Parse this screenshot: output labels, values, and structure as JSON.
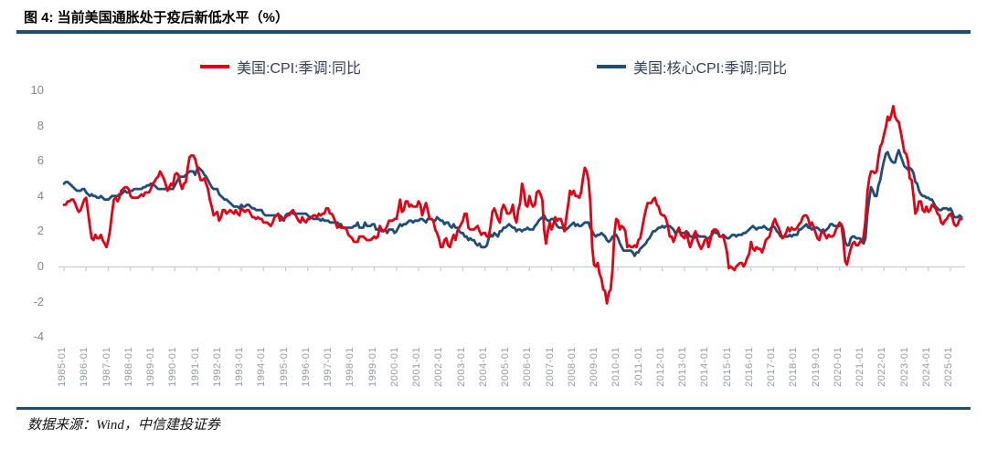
{
  "header": {
    "title": "图 4: 当前美国通胀处于疫后新低水平（%）"
  },
  "footer": {
    "source": "数据来源：Wind，中信建投证券"
  },
  "colors": {
    "divider_blue": "#1b4f78",
    "cpi_red": "#e60014",
    "core_cpi_blue": "#1f4e79",
    "axis_line_gray": "#c9cdd0",
    "y_tick_text": "#85898c",
    "x_tick_text": "#969ca1",
    "legend_text": "#33415c"
  },
  "chart_data": {
    "type": "line",
    "title": "当前美国通胀处于疫后新低水平（%）",
    "xlabel": "",
    "ylabel": "",
    "ylim": [
      -4,
      10
    ],
    "y_ticks": [
      10,
      8,
      6,
      4,
      2,
      0,
      -2,
      -4
    ],
    "grid": false,
    "legend_position": "top",
    "start": "1985-01",
    "end": "2025-07",
    "frequency": "monthly",
    "x_tick_labels": [
      "1985-01",
      "1986-01",
      "1987-01",
      "1988-01",
      "1989-01",
      "1990-01",
      "1991-01",
      "1992-01",
      "1993-01",
      "1994-01",
      "1995-01",
      "1996-01",
      "1997-01",
      "1998-01",
      "1999-01",
      "2000-01",
      "2001-01",
      "2002-01",
      "2003-01",
      "2004-01",
      "2005-01",
      "2006-01",
      "2007-01",
      "2008-01",
      "2009-01",
      "2010-01",
      "2011-01",
      "2012-01",
      "2013-01",
      "2014-01",
      "2015-01",
      "2016-01",
      "2017-01",
      "2018-01",
      "2019-01",
      "2020-01",
      "2021-01",
      "2022-01",
      "2023-01",
      "2024-01",
      "2025-01"
    ],
    "series": [
      {
        "name": "美国:CPI:季调:同比",
        "color": "#e60014",
        "values": [
          3.5,
          3.5,
          3.7,
          3.7,
          3.8,
          3.8,
          3.6,
          3.3,
          3.1,
          3.2,
          3.5,
          3.8,
          3.9,
          3.1,
          2.3,
          1.6,
          1.5,
          1.8,
          1.6,
          1.6,
          1.8,
          1.5,
          1.3,
          1.1,
          1.5,
          2.1,
          3.0,
          3.8,
          3.9,
          3.7,
          3.9,
          4.3,
          4.4,
          4.5,
          4.5,
          4.4,
          4.0,
          3.9,
          3.9,
          3.9,
          3.9,
          4.0,
          4.1,
          4.0,
          4.2,
          4.2,
          4.2,
          4.4,
          4.7,
          4.8,
          5.0,
          5.1,
          5.4,
          5.2,
          5.0,
          4.7,
          4.3,
          4.5,
          4.7,
          4.6,
          5.2,
          5.3,
          5.2,
          4.7,
          4.4,
          4.7,
          4.8,
          5.6,
          6.2,
          6.3,
          6.3,
          6.1,
          5.7,
          5.3,
          4.9,
          4.9,
          5.0,
          4.7,
          4.4,
          3.8,
          3.4,
          2.9,
          3.0,
          3.1,
          2.6,
          2.8,
          3.2,
          3.2,
          3.0,
          3.1,
          3.2,
          3.1,
          3.0,
          3.2,
          3.0,
          2.9,
          3.3,
          3.2,
          3.1,
          3.2,
          3.2,
          3.0,
          2.8,
          2.8,
          2.7,
          2.8,
          2.7,
          2.7,
          2.5,
          2.5,
          2.5,
          2.4,
          2.3,
          2.5,
          2.8,
          2.9,
          3.0,
          2.6,
          2.7,
          2.7,
          2.8,
          2.9,
          2.9,
          3.1,
          3.2,
          3.0,
          2.8,
          2.6,
          2.5,
          2.8,
          2.6,
          2.5,
          2.7,
          2.7,
          2.8,
          2.9,
          2.9,
          2.8,
          3.0,
          2.9,
          3.0,
          3.0,
          3.3,
          3.3,
          3.0,
          3.0,
          2.8,
          2.5,
          2.2,
          2.3,
          2.2,
          2.2,
          2.2,
          2.1,
          1.8,
          1.7,
          1.6,
          1.4,
          1.4,
          1.4,
          1.7,
          1.7,
          1.7,
          1.6,
          1.5,
          1.5,
          1.5,
          1.6,
          1.7,
          1.6,
          1.7,
          2.3,
          2.1,
          2.0,
          2.1,
          2.3,
          2.6,
          2.6,
          2.6,
          2.7,
          2.7,
          3.2,
          3.8,
          3.1,
          3.2,
          3.7,
          3.7,
          3.4,
          3.5,
          3.4,
          3.4,
          3.4,
          3.7,
          3.5,
          2.9,
          3.3,
          3.6,
          3.2,
          2.7,
          2.7,
          2.6,
          2.1,
          1.9,
          1.6,
          1.1,
          1.1,
          1.5,
          1.6,
          1.2,
          1.1,
          1.5,
          1.8,
          1.5,
          2.0,
          2.2,
          2.4,
          2.6,
          3.0,
          3.0,
          2.2,
          2.1,
          2.1,
          2.1,
          2.2,
          2.3,
          2.0,
          1.8,
          1.9,
          1.9,
          1.7,
          1.7,
          2.3,
          3.1,
          3.3,
          3.0,
          2.7,
          2.5,
          3.2,
          3.5,
          3.3,
          3.0,
          3.0,
          3.1,
          3.5,
          2.8,
          2.5,
          3.2,
          3.6,
          4.7,
          4.3,
          3.5,
          3.4,
          4.0,
          3.6,
          3.4,
          3.5,
          4.2,
          4.3,
          4.1,
          3.8,
          2.1,
          1.3,
          2.0,
          2.5,
          2.1,
          2.4,
          2.8,
          2.6,
          2.7,
          2.7,
          2.4,
          2.0,
          2.8,
          3.5,
          4.3,
          4.1,
          4.3,
          4.0,
          4.0,
          3.9,
          4.2,
          5.0,
          5.6,
          5.4,
          4.9,
          3.7,
          1.1,
          0.1,
          0.0,
          0.2,
          -0.4,
          -0.7,
          -1.3,
          -1.4,
          -2.1,
          -1.5,
          -1.3,
          -0.2,
          1.8,
          2.7,
          2.6,
          2.1,
          2.3,
          2.2,
          2.0,
          1.1,
          1.2,
          1.1,
          1.1,
          1.2,
          1.1,
          1.5,
          1.6,
          2.1,
          2.7,
          3.2,
          3.6,
          3.6,
          3.6,
          3.8,
          3.9,
          3.5,
          3.4,
          3.0,
          2.9,
          2.9,
          2.7,
          2.3,
          1.7,
          1.7,
          1.4,
          1.7,
          2.0,
          2.2,
          1.8,
          1.7,
          1.6,
          2.0,
          1.5,
          1.1,
          1.4,
          1.8,
          2.0,
          1.5,
          1.2,
          1.0,
          1.2,
          1.5,
          1.6,
          1.1,
          1.5,
          2.0,
          2.1,
          2.1,
          2.0,
          1.7,
          1.7,
          1.7,
          1.3,
          0.8,
          -0.1,
          0.0,
          -0.1,
          -0.2,
          0.0,
          0.1,
          0.2,
          0.2,
          0.0,
          0.2,
          0.5,
          0.7,
          1.4,
          1.0,
          0.9,
          1.1,
          1.0,
          1.0,
          0.8,
          1.1,
          1.5,
          1.6,
          1.7,
          2.1,
          2.5,
          2.7,
          2.4,
          2.2,
          1.9,
          1.6,
          1.7,
          1.9,
          2.2,
          2.0,
          2.2,
          2.1,
          2.1,
          2.2,
          2.4,
          2.5,
          2.8,
          2.9,
          2.9,
          2.7,
          2.3,
          2.5,
          2.2,
          1.9,
          1.6,
          1.5,
          1.9,
          2.0,
          1.8,
          1.6,
          1.8,
          1.7,
          1.7,
          1.8,
          2.1,
          2.3,
          2.5,
          2.3,
          1.5,
          0.3,
          0.1,
          0.6,
          1.0,
          1.3,
          1.4,
          1.2,
          1.2,
          1.4,
          1.4,
          1.7,
          2.6,
          4.2,
          5.0,
          5.4,
          5.4,
          5.3,
          5.4,
          6.2,
          6.8,
          7.0,
          7.5,
          7.9,
          8.5,
          8.3,
          8.6,
          9.1,
          8.5,
          8.3,
          8.2,
          7.7,
          7.1,
          6.5,
          6.4,
          6.0,
          5.0,
          4.9,
          4.0,
          3.0,
          3.2,
          3.7,
          3.7,
          3.2,
          3.1,
          3.4,
          3.1,
          3.2,
          3.5,
          3.4,
          3.3,
          3.0,
          2.9,
          2.5,
          2.4,
          2.6,
          2.7,
          2.9,
          3.0,
          2.8,
          2.4,
          2.3,
          2.4,
          2.7,
          2.7
        ]
      },
      {
        "name": "美国:核心CPI:季调:同比",
        "color": "#1f4e79",
        "values": [
          4.7,
          4.8,
          4.8,
          4.7,
          4.6,
          4.5,
          4.4,
          4.3,
          4.3,
          4.3,
          4.4,
          4.4,
          4.2,
          4.1,
          4.0,
          4.1,
          4.0,
          4.0,
          3.9,
          3.9,
          4.0,
          3.9,
          3.8,
          3.8,
          3.8,
          3.9,
          4.0,
          4.0,
          4.0,
          4.0,
          4.1,
          4.1,
          4.2,
          4.3,
          4.2,
          4.2,
          4.3,
          4.3,
          4.4,
          4.4,
          4.4,
          4.4,
          4.4,
          4.5,
          4.5,
          4.6,
          4.6,
          4.7,
          4.7,
          4.6,
          4.5,
          4.4,
          4.4,
          4.4,
          4.4,
          4.4,
          4.4,
          4.4,
          4.4,
          4.4,
          4.6,
          4.8,
          5.0,
          5.1,
          5.1,
          5.1,
          5.2,
          5.3,
          5.4,
          5.4,
          5.4,
          5.2,
          5.5,
          5.6,
          5.5,
          5.4,
          5.2,
          5.1,
          4.9,
          4.7,
          4.5,
          4.4,
          4.4,
          4.4,
          4.1,
          4.0,
          3.9,
          3.8,
          3.8,
          3.7,
          3.6,
          3.5,
          3.4,
          3.4,
          3.4,
          3.3,
          3.5,
          3.4,
          3.4,
          3.5,
          3.5,
          3.4,
          3.3,
          3.3,
          3.2,
          3.2,
          3.2,
          3.2,
          3.0,
          2.9,
          2.9,
          2.9,
          2.9,
          2.9,
          2.9,
          2.9,
          2.9,
          2.9,
          2.8,
          2.6,
          2.9,
          3.0,
          3.0,
          3.1,
          3.0,
          3.0,
          3.0,
          3.0,
          3.0,
          3.0,
          3.0,
          3.0,
          2.9,
          2.8,
          2.8,
          2.7,
          2.7,
          2.7,
          2.7,
          2.6,
          2.7,
          2.6,
          2.6,
          2.6,
          2.5,
          2.5,
          2.5,
          2.5,
          2.5,
          2.4,
          2.4,
          2.2,
          2.2,
          2.2,
          2.2,
          2.2,
          2.2,
          2.3,
          2.3,
          2.5,
          2.2,
          2.2,
          2.2,
          2.5,
          2.3,
          2.3,
          2.3,
          2.4,
          2.4,
          2.1,
          2.1,
          2.2,
          2.0,
          2.0,
          2.1,
          1.9,
          2.1,
          2.1,
          2.1,
          1.9,
          2.0,
          2.2,
          2.4,
          2.3,
          2.4,
          2.4,
          2.5,
          2.6,
          2.6,
          2.5,
          2.6,
          2.6,
          2.6,
          2.7,
          2.7,
          2.6,
          2.5,
          2.7,
          2.7,
          2.7,
          2.6,
          2.6,
          2.8,
          2.7,
          2.6,
          2.6,
          2.4,
          2.5,
          2.5,
          2.3,
          2.2,
          2.4,
          2.2,
          2.2,
          2.0,
          1.9,
          1.9,
          1.7,
          1.7,
          1.5,
          1.6,
          1.5,
          1.5,
          1.3,
          1.2,
          1.3,
          1.1,
          1.1,
          1.1,
          1.2,
          1.6,
          1.8,
          1.7,
          1.9,
          1.8,
          1.7,
          2.0,
          2.0,
          2.2,
          2.2,
          2.3,
          2.4,
          2.3,
          2.2,
          2.2,
          2.0,
          2.1,
          2.1,
          2.0,
          2.1,
          2.1,
          2.2,
          2.1,
          2.1,
          2.1,
          2.3,
          2.4,
          2.6,
          2.7,
          2.8,
          2.9,
          2.7,
          2.6,
          2.6,
          2.7,
          2.7,
          2.5,
          2.3,
          2.2,
          2.2,
          2.2,
          2.1,
          2.1,
          2.2,
          2.3,
          2.4,
          2.5,
          2.3,
          2.4,
          2.3,
          2.3,
          2.4,
          2.5,
          2.5,
          2.5,
          2.2,
          2.0,
          1.8,
          1.7,
          1.8,
          1.8,
          1.9,
          1.8,
          1.7,
          1.5,
          1.4,
          1.5,
          1.7,
          1.7,
          1.8,
          1.6,
          1.3,
          1.1,
          0.9,
          0.9,
          0.9,
          0.9,
          0.9,
          0.8,
          0.6,
          0.8,
          0.8,
          1.0,
          1.1,
          1.2,
          1.3,
          1.5,
          1.6,
          1.8,
          2.0,
          2.0,
          2.1,
          2.2,
          2.2,
          2.3,
          2.2,
          2.3,
          2.3,
          2.3,
          2.2,
          2.1,
          1.9,
          2.0,
          2.0,
          1.9,
          1.9,
          1.9,
          2.0,
          1.9,
          1.7,
          1.7,
          1.6,
          1.7,
          1.8,
          1.7,
          1.7,
          1.7,
          1.7,
          1.6,
          1.6,
          1.7,
          1.8,
          2.0,
          1.9,
          1.9,
          1.7,
          1.7,
          1.8,
          1.7,
          1.6,
          1.6,
          1.7,
          1.8,
          1.8,
          1.7,
          1.8,
          1.8,
          1.8,
          1.9,
          1.9,
          2.0,
          2.1,
          2.2,
          2.3,
          2.2,
          2.1,
          2.2,
          2.2,
          2.2,
          2.3,
          2.2,
          2.1,
          2.1,
          2.2,
          2.3,
          2.2,
          2.0,
          1.9,
          1.7,
          1.7,
          1.7,
          1.7,
          1.7,
          1.8,
          1.7,
          1.8,
          1.8,
          1.8,
          2.1,
          2.1,
          2.2,
          2.3,
          2.4,
          2.2,
          2.2,
          2.1,
          2.2,
          2.2,
          2.2,
          2.1,
          2.0,
          2.1,
          2.0,
          2.1,
          2.2,
          2.4,
          2.4,
          2.3,
          2.3,
          2.3,
          2.3,
          2.4,
          2.1,
          1.4,
          1.2,
          1.2,
          1.6,
          1.7,
          1.7,
          1.6,
          1.6,
          1.6,
          1.4,
          1.3,
          1.6,
          3.0,
          3.8,
          4.5,
          4.3,
          4.0,
          4.0,
          4.6,
          4.9,
          5.5,
          6.0,
          6.4,
          6.5,
          6.2,
          6.0,
          5.9,
          5.9,
          6.3,
          6.6,
          6.3,
          6.0,
          5.7,
          5.6,
          5.5,
          5.6,
          5.5,
          5.3,
          4.8,
          4.7,
          4.3,
          4.1,
          4.0,
          4.0,
          3.9,
          3.9,
          3.8,
          3.8,
          3.6,
          3.4,
          3.3,
          3.2,
          3.2,
          3.3,
          3.3,
          3.3,
          3.2,
          3.3,
          3.1,
          2.8,
          2.8,
          2.8,
          2.9,
          2.8
        ]
      }
    ]
  }
}
